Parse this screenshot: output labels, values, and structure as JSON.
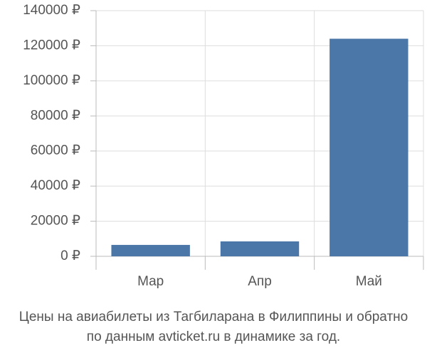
{
  "chart_data": {
    "type": "bar",
    "title": "Цены на авиабилеты из Тагбиларана в Филиппины и обратно",
    "subtitle": "по данным avticket.ru в динамике за год.",
    "categories": [
      "Мар",
      "Апр",
      "Май"
    ],
    "values": [
      6500,
      8500,
      124000
    ],
    "color": "#4a76a8",
    "ylim": [
      0,
      140000
    ],
    "yticks": [
      {
        "value": 0,
        "label": "0 ₽"
      },
      {
        "value": 20000,
        "label": "20000 ₽"
      },
      {
        "value": 40000,
        "label": "40000 ₽"
      },
      {
        "value": 60000,
        "label": "60000 ₽"
      },
      {
        "value": 80000,
        "label": "80000 ₽"
      },
      {
        "value": 100000,
        "label": "100000 ₽"
      },
      {
        "value": 120000,
        "label": "120000 ₽"
      },
      {
        "value": 140000,
        "label": "140000 ₽"
      }
    ],
    "grid": true
  }
}
